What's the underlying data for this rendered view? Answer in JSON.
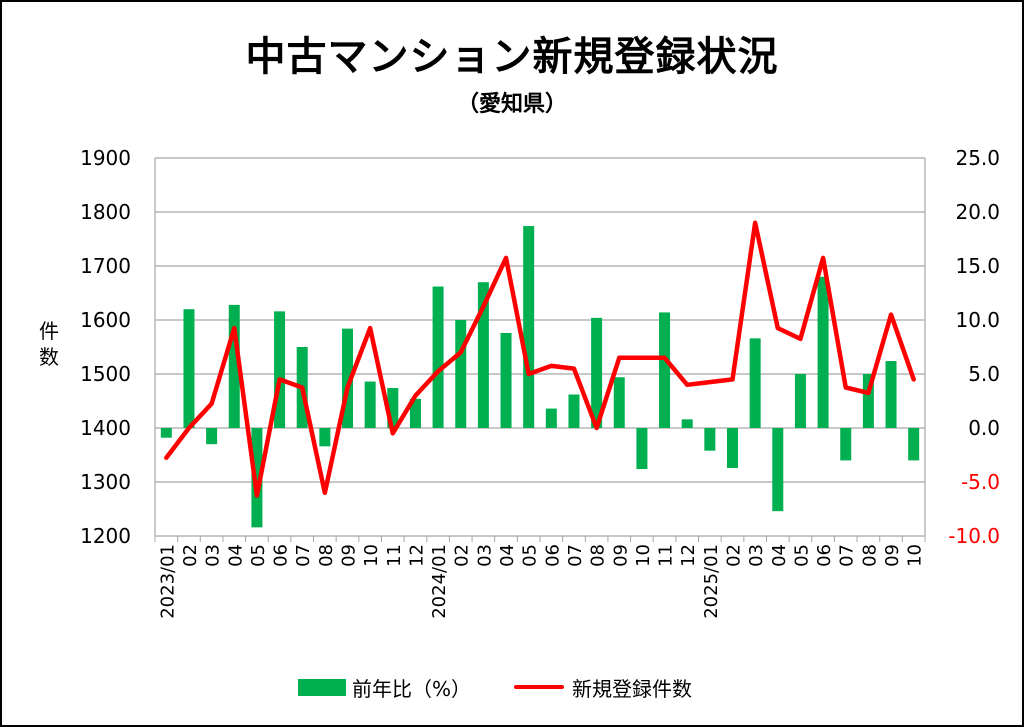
{
  "chart_data": {
    "type": "bar+line",
    "title": "中古マンション新規登録状況",
    "subtitle": "（愛知県）",
    "ylabel": "件数",
    "x": [
      "2023/01",
      "02",
      "03",
      "04",
      "05",
      "06",
      "07",
      "08",
      "09",
      "10",
      "11",
      "12",
      "2024/01",
      "02",
      "03",
      "04",
      "05",
      "06",
      "07",
      "08",
      "09",
      "10",
      "11",
      "12",
      "2025/01",
      "02",
      "03",
      "04",
      "05",
      "06",
      "07",
      "08",
      "09",
      "10"
    ],
    "y_left": {
      "min": 1200,
      "max": 1900,
      "ticks": [
        1200,
        1300,
        1400,
        1500,
        1600,
        1700,
        1800,
        1900
      ],
      "tick_labels": [
        "1200",
        "1300",
        "1400",
        "1500",
        "1600",
        "1700",
        "1800",
        "1900"
      ]
    },
    "y_right": {
      "min": -10,
      "max": 25,
      "ticks": [
        -10,
        -5,
        0,
        5,
        10,
        15,
        20,
        25
      ],
      "tick_labels": [
        "-10.0",
        "-5.0",
        "0.0",
        "5.0",
        "10.0",
        "15.0",
        "20.0",
        "25.0"
      ],
      "negative_color": "#ff0000"
    },
    "grid": true,
    "legend_position": "bottom",
    "series": [
      {
        "name": "前年比(%)",
        "type": "bar",
        "axis": "right",
        "color": "#00b050",
        "values": [
          -0.9,
          11.0,
          -1.5,
          11.4,
          -9.2,
          10.8,
          7.5,
          -1.7,
          9.2,
          4.3,
          3.7,
          2.7,
          13.1,
          10.0,
          13.5,
          8.8,
          18.7,
          1.8,
          3.1,
          10.2,
          4.7,
          -3.8,
          10.7,
          0.8,
          -2.1,
          -3.7,
          8.3,
          -7.7,
          5.0,
          14.0,
          -3.0,
          5.0,
          6.2,
          -3.0
        ]
      },
      {
        "name": "新規登録件数",
        "type": "line",
        "axis": "left",
        "color": "#ff0000",
        "values": [
          1345,
          1400,
          1445,
          1585,
          1275,
          1490,
          1475,
          1280,
          1475,
          1585,
          1390,
          1460,
          1505,
          1540,
          1625,
          1715,
          1500,
          1515,
          1510,
          1400,
          1530,
          1530,
          1530,
          1480,
          1485,
          1490,
          1780,
          1585,
          1565,
          1715,
          1475,
          1465,
          1610,
          1490
        ]
      }
    ]
  },
  "legend": {
    "bar_label": "前年比（%）",
    "line_label": "新規登録件数"
  }
}
